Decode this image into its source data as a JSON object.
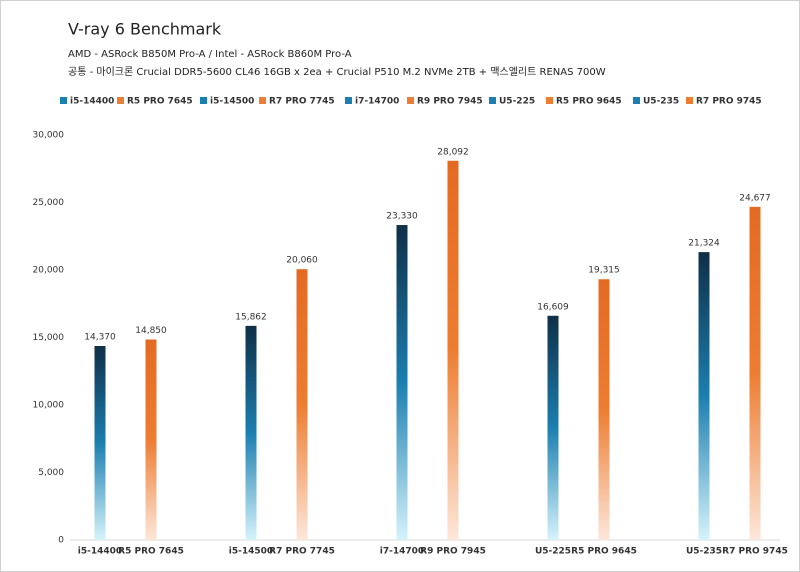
{
  "chart_data": {
    "type": "bar",
    "title": "V-ray 6 Benchmark",
    "subtitle": [
      "AMD - ASRock B850M Pro-A  /  Intel - ASRock B860M Pro-A",
      "공통 - 마이크론 Crucial DDR5-5600 CL46 16GB x 2ea + Crucial P510 M.2 NVMe 2TB + 맥스엘리트 RENAS 700W"
    ],
    "categories": [
      "i5-14400",
      "R5 PRO 7645",
      "i5-14500",
      "R7 PRO 7745",
      "i7-14700",
      "R9 PRO 7945",
      "U5-225",
      "R5 PRO 9645",
      "U5-235",
      "R7 PRO 9745"
    ],
    "values": [
      14370,
      14850,
      15862,
      20060,
      23330,
      28092,
      16609,
      19315,
      21324,
      24677
    ],
    "value_labels": [
      "14,370",
      "14,850",
      "15,862",
      "20,060",
      "23,330",
      "28,092",
      "16,609",
      "19,315",
      "21,324",
      "24,677"
    ],
    "colors": [
      "#1b7fb0",
      "#ed7d31",
      "#1b7fb0",
      "#ed7d31",
      "#1b7fb0",
      "#ed7d31",
      "#1b7fb0",
      "#ed7d31",
      "#1b7fb0",
      "#ed7d31"
    ],
    "ylim": [
      0,
      30000
    ],
    "yticks": [
      0,
      {
        "value": 5000,
        "label": "5,000"
      },
      {
        "value": 10000,
        "label": "10,000"
      },
      {
        "value": 15000,
        "label": "15,000"
      },
      {
        "value": 20000,
        "label": "20,000"
      },
      {
        "value": 25000,
        "label": "25,000"
      },
      {
        "value": 30000,
        "label": "30,000"
      }
    ],
    "grid": false
  }
}
